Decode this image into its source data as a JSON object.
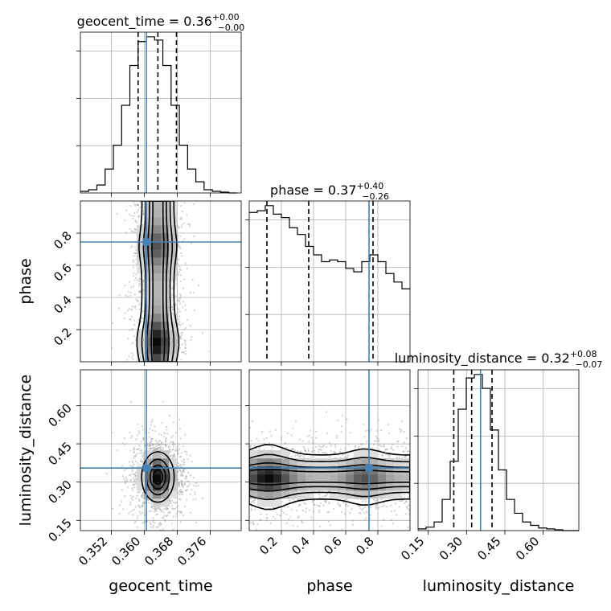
{
  "chart_data": {
    "type": "corner",
    "parameters": [
      "geocent_time",
      "phase",
      "luminosity_distance"
    ],
    "truths": [
      0.3605,
      0.745,
      0.355
    ],
    "colors": {
      "truth": "#4682b4",
      "line": "#000000",
      "grid": "#b0b0b0"
    },
    "grid": true,
    "titles": [
      {
        "name": "geocent_time",
        "median": "0.36",
        "plus": "+0.00",
        "minus": "−0.00"
      },
      {
        "name": "phase",
        "median": "0.37",
        "plus": "+0.40",
        "minus": "−0.26"
      },
      {
        "name": "luminosity_distance",
        "median": "0.32",
        "plus": "+0.08",
        "minus": "−0.07"
      }
    ],
    "axes": {
      "geocent_time": {
        "range": [
          0.3445,
          0.3835
        ],
        "ticks": [
          0.352,
          0.36,
          0.368,
          0.376
        ],
        "tick_labels": [
          "0.352",
          "0.360",
          "0.368",
          "0.376"
        ]
      },
      "phase": {
        "range": [
          0.0,
          1.0
        ],
        "ticks": [
          0.2,
          0.4,
          0.6,
          0.8
        ],
        "tick_labels": [
          "0.2",
          "0.4",
          "0.6",
          "0.8"
        ]
      },
      "luminosity_distance": {
        "range": [
          0.11,
          0.74
        ],
        "ticks": [
          0.15,
          0.3,
          0.45,
          0.6
        ],
        "tick_labels": [
          "0.15",
          "0.30",
          "0.45",
          "0.60"
        ]
      }
    },
    "histograms": {
      "geocent_time": {
        "bin_edges": [
          0.3445,
          0.3465,
          0.3485,
          0.3505,
          0.3525,
          0.3545,
          0.3565,
          0.3585,
          0.3605,
          0.3625,
          0.3645,
          0.3665,
          0.3685,
          0.3705,
          0.3725,
          0.3745,
          0.3765,
          0.3785,
          0.3805,
          0.3825
        ],
        "counts": [
          1,
          2,
          5,
          15,
          30,
          55,
          80,
          95,
          98,
          96,
          80,
          55,
          30,
          15,
          7,
          2,
          1,
          0.5,
          0
        ]
      },
      "phase": {
        "bin_edges": [
          0,
          0.05,
          0.1,
          0.15,
          0.2,
          0.25,
          0.3,
          0.35,
          0.4,
          0.45,
          0.5,
          0.55,
          0.6,
          0.65,
          0.7,
          0.75,
          0.8,
          0.85,
          0.9,
          0.95,
          1.0
        ],
        "counts": [
          88,
          89,
          92,
          87,
          85,
          79,
          75,
          68,
          63,
          59,
          60,
          59,
          55,
          53,
          59,
          63,
          59,
          52,
          47,
          43
        ]
      },
      "luminosity_distance": {
        "bin_edges": [
          0.11,
          0.1415,
          0.173,
          0.2045,
          0.236,
          0.2675,
          0.299,
          0.3305,
          0.362,
          0.3935,
          0.425,
          0.4565,
          0.488,
          0.5195,
          0.551,
          0.5825,
          0.614,
          0.6455,
          0.677,
          0.7085,
          0.74
        ],
        "counts": [
          1,
          2,
          5,
          18,
          40,
          70,
          88,
          90,
          82,
          58,
          35,
          18,
          10,
          5,
          3,
          1.5,
          1,
          0.5,
          0,
          0
        ]
      }
    },
    "quantiles": {
      "geocent_time": [
        0.3585,
        0.3633,
        0.3678
      ],
      "phase": [
        0.11,
        0.37,
        0.77
      ],
      "luminosity_distance": [
        0.25,
        0.32,
        0.4
      ]
    },
    "pairs": [
      {
        "x": "geocent_time",
        "y": "phase"
      },
      {
        "x": "geocent_time",
        "y": "luminosity_distance"
      },
      {
        "x": "phase",
        "y": "luminosity_distance"
      }
    ],
    "xlabels": [
      "geocent_time",
      "phase",
      "luminosity_distance"
    ],
    "ylabels": [
      "phase",
      "luminosity_distance"
    ]
  }
}
